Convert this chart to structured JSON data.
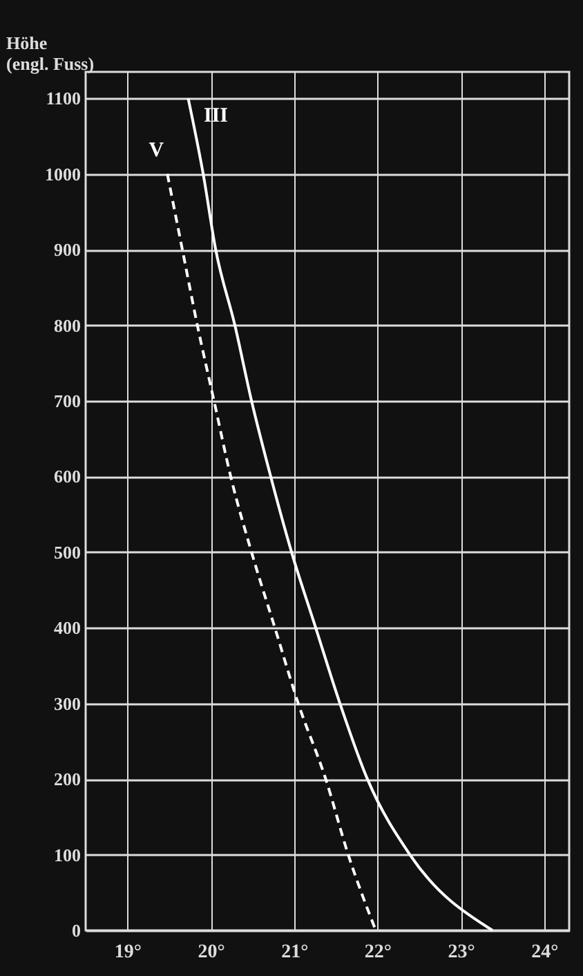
{
  "chart_data": {
    "type": "line",
    "ylabel": "Höhe (engl. Fuss)",
    "xlim": [
      18.5,
      24.3
    ],
    "ylim": [
      0,
      1135
    ],
    "xticks": [
      {
        "value": 19,
        "label": "19°"
      },
      {
        "value": 20,
        "label": "20°"
      },
      {
        "value": 21,
        "label": "21°"
      },
      {
        "value": 22,
        "label": "22°"
      },
      {
        "value": 23,
        "label": "23°"
      },
      {
        "value": 24,
        "label": "24°"
      }
    ],
    "yticks": [
      0,
      100,
      200,
      300,
      400,
      500,
      600,
      700,
      800,
      900,
      1000,
      1100
    ],
    "grid": true,
    "marker": "none",
    "series": [
      {
        "name": "III",
        "color": "#ffffff",
        "line_style": "solid",
        "x": [
          19.73,
          19.91,
          20.06,
          20.29,
          20.49,
          20.72,
          20.97,
          21.26,
          21.55,
          21.88,
          22.39,
          23.38
        ],
        "values": [
          1100,
          1000,
          900,
          800,
          700,
          600,
          500,
          400,
          300,
          200,
          100,
          0
        ]
      },
      {
        "name": "V",
        "color": "#ffffff",
        "line_style": "dashed",
        "x": [
          19.48,
          19.66,
          19.84,
          20.04,
          20.24,
          20.49,
          20.77,
          21.05,
          21.38,
          21.65,
          21.98
        ],
        "values": [
          1000,
          900,
          800,
          700,
          600,
          500,
          400,
          300,
          200,
          100,
          0
        ]
      }
    ]
  }
}
